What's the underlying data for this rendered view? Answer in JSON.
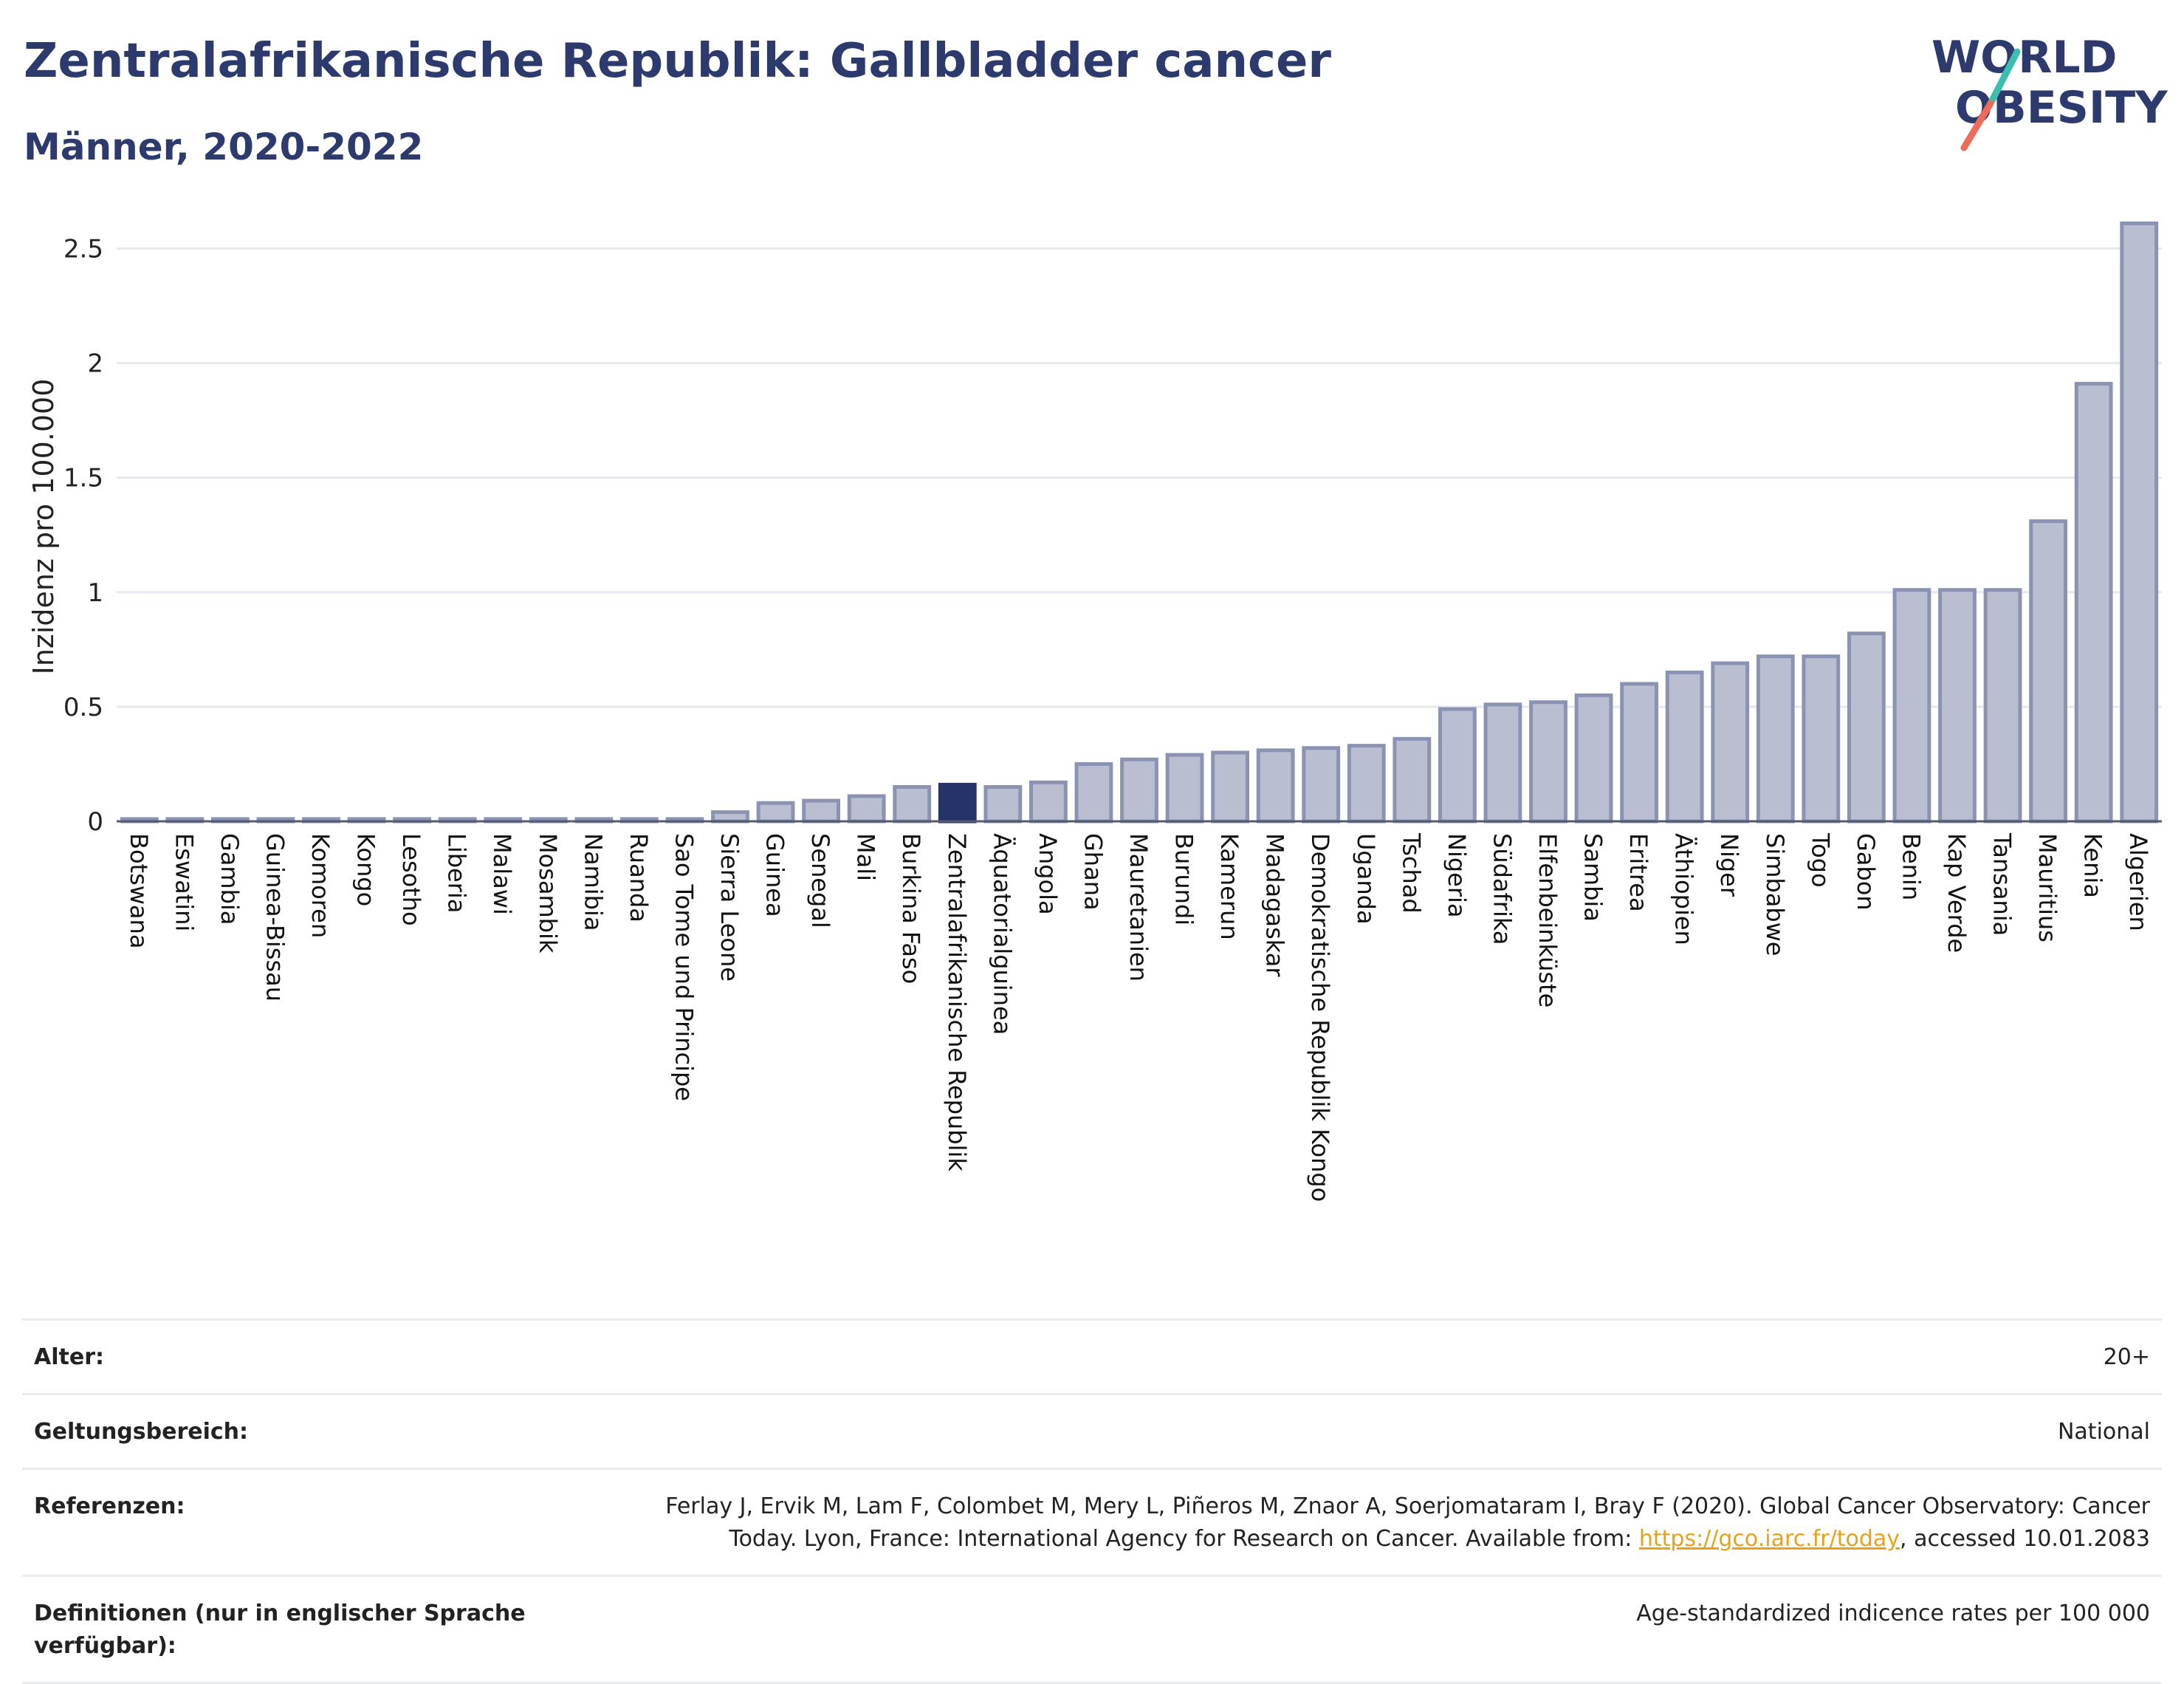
{
  "title": "Zentralafrikanische Republik: Gallbladder cancer",
  "subtitle": "Männer, 2020-2022",
  "logo": {
    "line1": "WORLD",
    "line2": "OBESITY"
  },
  "colors": {
    "bar": "#b9bfd1",
    "bar_stroke": "#8b93b2",
    "highlight": "#26336a",
    "grid": "#e6e9f0",
    "title": "#2d3a6e"
  },
  "chart_data": {
    "type": "bar",
    "ylabel": "Inzidenz pro 100.000",
    "ylim": [
      0,
      2.65
    ],
    "yticks": [
      0,
      0.5,
      1,
      1.5,
      2,
      2.5
    ],
    "ytick_labels": [
      "0",
      "0.5",
      "1",
      "1.5",
      "2",
      "2.5"
    ],
    "grid": true,
    "highlight": "Zentralafrikanische Republik",
    "categories": [
      "Botswana",
      "Eswatini",
      "Gambia",
      "Guinea-Bissau",
      "Komoren",
      "Kongo",
      "Lesotho",
      "Liberia",
      "Malawi",
      "Mosambik",
      "Namibia",
      "Ruanda",
      "Sao Tome und Principe",
      "Sierra Leone",
      "Guinea",
      "Senegal",
      "Mali",
      "Burkina Faso",
      "Zentralafrikanische Republik",
      "Äquatorialguinea",
      "Angola",
      "Ghana",
      "Mauretanien",
      "Burundi",
      "Kamerun",
      "Madagaskar",
      "Demokratische Republik Kongo",
      "Uganda",
      "Tschad",
      "Nigeria",
      "Südafrika",
      "Elfenbeinküste",
      "Sambia",
      "Eritrea",
      "Äthiopien",
      "Niger",
      "Simbabwe",
      "Togo",
      "Gabon",
      "Benin",
      "Kap Verde",
      "Tansania",
      "Mauritius",
      "Kenia",
      "Algerien"
    ],
    "values": [
      0.01,
      0.01,
      0.01,
      0.01,
      0.01,
      0.01,
      0.01,
      0.01,
      0.01,
      0.01,
      0.01,
      0.01,
      0.01,
      0.04,
      0.08,
      0.09,
      0.11,
      0.15,
      0.16,
      0.15,
      0.17,
      0.25,
      0.27,
      0.29,
      0.3,
      0.31,
      0.32,
      0.33,
      0.36,
      0.49,
      0.51,
      0.52,
      0.55,
      0.6,
      0.65,
      0.69,
      0.72,
      0.72,
      0.82,
      1.01,
      1.01,
      1.01,
      1.31,
      1.91,
      2.61
    ]
  },
  "meta": {
    "age_label": "Alter:",
    "age_value": "20+",
    "scope_label": "Geltungsbereich:",
    "scope_value": "National",
    "ref_label": "Referenzen:",
    "ref_text_1": "Ferlay J, Ervik M, Lam F, Colombet M, Mery L, Piñeros M, Znaor A, Soerjomataram I, Bray F (2020). Global Cancer Observatory: Cancer Today. Lyon, France: International Agency for Research on Cancer. Available from: ",
    "ref_link": "https://gco.iarc.fr/today",
    "ref_text_2": ", accessed 10.01.2083",
    "def_label": "Definitionen (nur in englischer Sprache verfügbar):",
    "def_value": "Age-standardized indicence rates per 100 000"
  }
}
